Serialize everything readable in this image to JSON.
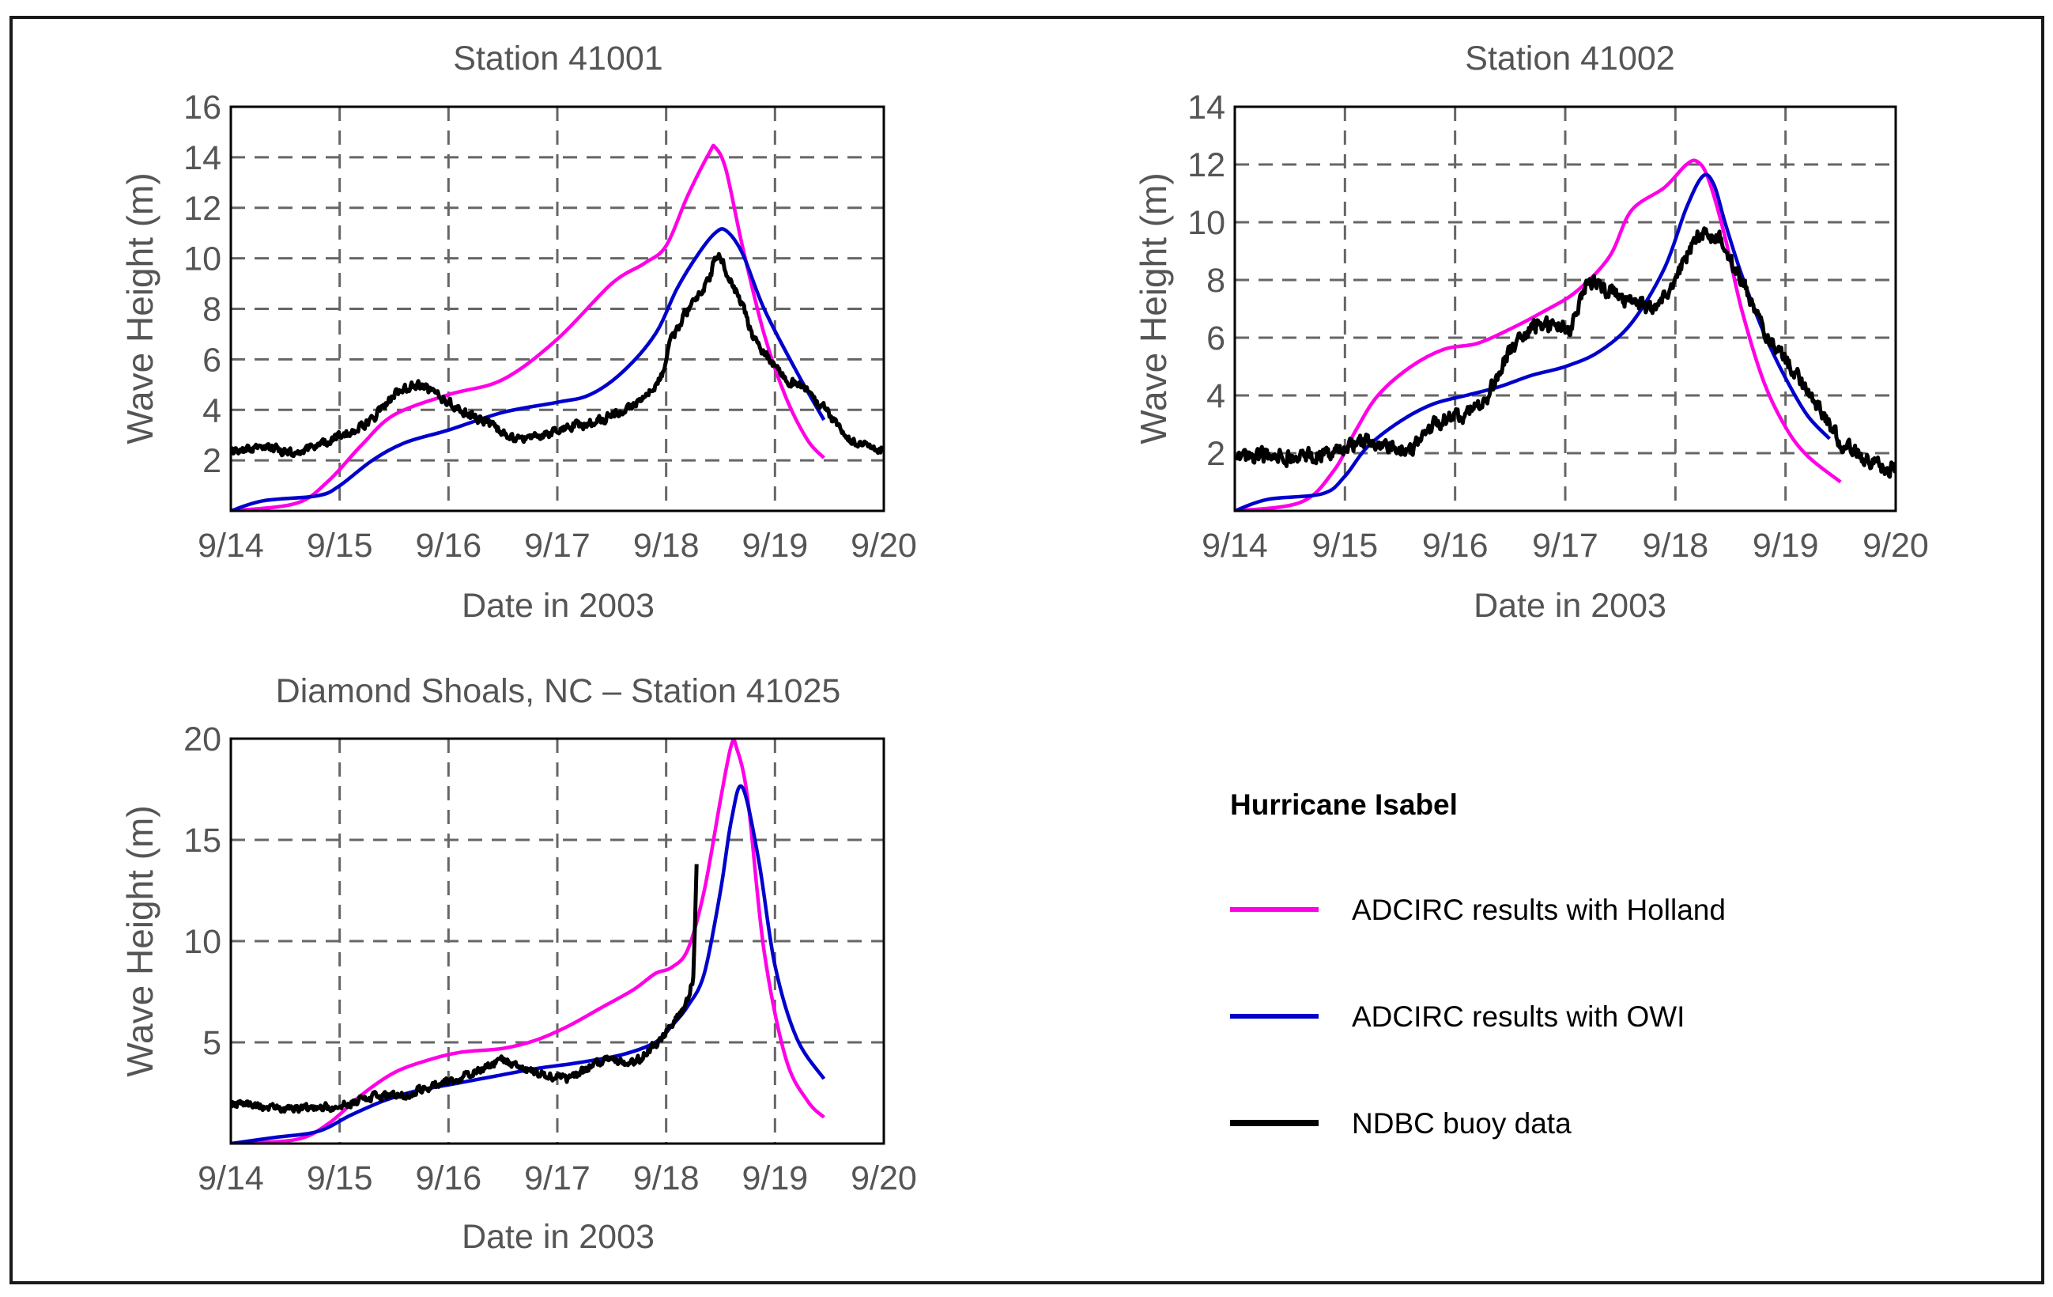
{
  "legend": {
    "title": "Hurricane Isabel",
    "entries": [
      {
        "label": "ADCIRC results with Holland",
        "color": "#ff00e6"
      },
      {
        "label": "ADCIRC results with OWI",
        "color": "#0000cc"
      },
      {
        "label": "NDBC buoy data",
        "color": "#000000"
      }
    ]
  },
  "chart_data": [
    {
      "type": "line",
      "title": "Station 41001",
      "xlabel": "Date in 2003",
      "ylabel": "Wave Height (m)",
      "x_ticks": [
        "9/14",
        "9/15",
        "9/16",
        "9/17",
        "9/18",
        "9/19",
        "9/20"
      ],
      "xlim": [
        0,
        6
      ],
      "ylim": [
        0,
        16
      ],
      "y_ticks": [
        2,
        4,
        6,
        8,
        10,
        12,
        14,
        16
      ],
      "grid": true,
      "series": [
        {
          "name": "ADCIRC results with Holland",
          "color": "#ff00e6",
          "noise": 0,
          "x": [
            0,
            0.6,
            0.9,
            1.2,
            1.5,
            2.0,
            2.5,
            3.0,
            3.5,
            3.8,
            4.0,
            4.2,
            4.4,
            4.45,
            4.55,
            4.7,
            4.9,
            5.1,
            5.3,
            5.45
          ],
          "y": [
            0,
            0.3,
            1.2,
            2.6,
            3.8,
            4.6,
            5.2,
            6.8,
            9.0,
            9.8,
            10.5,
            12.5,
            14.2,
            14.4,
            13.5,
            10.5,
            7.0,
            4.5,
            2.8,
            2.1
          ]
        },
        {
          "name": "ADCIRC results with OWI",
          "color": "#0000cc",
          "noise": 0,
          "x": [
            0,
            0.3,
            0.8,
            1.0,
            1.3,
            1.6,
            2.0,
            2.5,
            3.0,
            3.3,
            3.6,
            3.9,
            4.1,
            4.3,
            4.45,
            4.55,
            4.7,
            4.9,
            5.2,
            5.45
          ],
          "y": [
            0,
            0.4,
            0.6,
            1.0,
            2.0,
            2.7,
            3.2,
            3.9,
            4.3,
            4.6,
            5.5,
            7.0,
            8.8,
            10.2,
            11.0,
            11.1,
            10.2,
            8.0,
            5.5,
            3.6
          ]
        },
        {
          "name": "NDBC buoy data",
          "color": "#000000",
          "noise": 0.15,
          "x": [
            0,
            0.3,
            0.5,
            0.8,
            1.0,
            1.3,
            1.5,
            1.7,
            1.9,
            2.1,
            2.4,
            2.6,
            2.9,
            3.1,
            3.4,
            3.7,
            3.95,
            4.05,
            4.2,
            4.3,
            4.4,
            4.45,
            4.5,
            4.6,
            4.7,
            4.8,
            4.95,
            5.1,
            5.3,
            5.5,
            5.7,
            6.0
          ],
          "y": [
            2.3,
            2.6,
            2.3,
            2.6,
            2.9,
            3.6,
            4.6,
            5.0,
            4.6,
            4.0,
            3.4,
            2.8,
            3.0,
            3.3,
            3.6,
            4.2,
            5.2,
            6.8,
            8.0,
            8.6,
            9.2,
            10.0,
            10.1,
            9.0,
            8.2,
            6.8,
            6.0,
            5.2,
            4.8,
            3.8,
            2.8,
            2.4
          ]
        }
      ]
    },
    {
      "type": "line",
      "title": "Station 41002",
      "xlabel": "Date in 2003",
      "ylabel": "Wave Height (m)",
      "x_ticks": [
        "9/14",
        "9/15",
        "9/16",
        "9/17",
        "9/18",
        "9/19",
        "9/20"
      ],
      "xlim": [
        0,
        6
      ],
      "ylim": [
        0,
        14
      ],
      "y_ticks": [
        2,
        4,
        6,
        8,
        10,
        12,
        14
      ],
      "grid": true,
      "series": [
        {
          "name": "ADCIRC results with Holland",
          "color": "#ff00e6",
          "noise": 0,
          "x": [
            0,
            0.6,
            0.9,
            1.1,
            1.3,
            1.6,
            1.9,
            2.2,
            2.5,
            2.8,
            3.1,
            3.4,
            3.6,
            3.9,
            4.1,
            4.2,
            4.3,
            4.45,
            4.6,
            4.8,
            5.0,
            5.2,
            5.5
          ],
          "y": [
            0,
            0.3,
            1.4,
            2.8,
            4.0,
            5.0,
            5.6,
            5.8,
            6.3,
            6.9,
            7.6,
            8.8,
            10.4,
            11.2,
            12.0,
            12.1,
            11.5,
            9.5,
            7.0,
            4.5,
            2.9,
            1.9,
            1.0
          ]
        },
        {
          "name": "ADCIRC results with OWI",
          "color": "#0000cc",
          "noise": 0,
          "x": [
            0,
            0.3,
            0.8,
            1.0,
            1.2,
            1.5,
            1.8,
            2.1,
            2.4,
            2.7,
            3.0,
            3.3,
            3.6,
            3.9,
            4.1,
            4.25,
            4.35,
            4.45,
            4.6,
            4.8,
            5.0,
            5.2,
            5.4
          ],
          "y": [
            0,
            0.4,
            0.6,
            1.2,
            2.2,
            3.1,
            3.7,
            4.0,
            4.3,
            4.7,
            5.0,
            5.5,
            6.5,
            8.4,
            10.5,
            11.6,
            11.3,
            10.0,
            8.2,
            6.2,
            4.6,
            3.3,
            2.5
          ]
        },
        {
          "name": "NDBC buoy data",
          "color": "#000000",
          "noise": 0.25,
          "x": [
            0,
            0.3,
            0.5,
            0.8,
            1.0,
            1.2,
            1.4,
            1.6,
            1.8,
            1.95,
            2.1,
            2.3,
            2.5,
            2.7,
            2.95,
            3.05,
            3.2,
            3.4,
            3.6,
            3.8,
            3.95,
            4.1,
            4.2,
            4.3,
            4.4,
            4.55,
            4.7,
            4.85,
            5.1,
            5.3,
            5.5,
            5.8,
            6.0
          ],
          "y": [
            1.8,
            1.9,
            1.8,
            2.0,
            2.2,
            2.4,
            2.3,
            2.1,
            3.0,
            3.2,
            3.3,
            4.0,
            5.6,
            6.3,
            6.5,
            6.2,
            8.0,
            7.6,
            7.2,
            7.0,
            7.6,
            8.8,
            9.6,
            9.5,
            9.4,
            8.4,
            7.2,
            6.0,
            4.7,
            3.6,
            2.4,
            1.6,
            1.4
          ]
        }
      ]
    },
    {
      "type": "line",
      "title": "Diamond Shoals, NC – Station 41025",
      "xlabel": "Date in 2003",
      "ylabel": "Wave Height (m)",
      "x_ticks": [
        "9/14",
        "9/15",
        "9/16",
        "9/17",
        "9/18",
        "9/19",
        "9/20"
      ],
      "xlim": [
        0,
        6
      ],
      "ylim": [
        0,
        20
      ],
      "y_ticks": [
        5,
        10,
        15,
        20
      ],
      "grid": true,
      "series": [
        {
          "name": "ADCIRC results with Holland",
          "color": "#ff00e6",
          "noise": 0,
          "x": [
            0,
            0.6,
            0.9,
            1.2,
            1.5,
            1.8,
            2.1,
            2.5,
            2.8,
            3.1,
            3.4,
            3.7,
            3.9,
            4.05,
            4.2,
            4.35,
            4.5,
            4.6,
            4.65,
            4.75,
            4.9,
            5.1,
            5.3,
            5.45
          ],
          "y": [
            0,
            0.2,
            1.0,
            2.4,
            3.5,
            4.1,
            4.5,
            4.7,
            5.1,
            5.8,
            6.7,
            7.6,
            8.4,
            8.7,
            9.6,
            12.5,
            17.0,
            19.7,
            19.5,
            17.0,
            9.5,
            4.2,
            2.1,
            1.3
          ]
        },
        {
          "name": "ADCIRC results with OWI",
          "color": "#0000cc",
          "noise": 0,
          "x": [
            0,
            0.4,
            0.8,
            1.1,
            1.4,
            1.7,
            2.0,
            2.4,
            2.8,
            3.2,
            3.6,
            3.9,
            4.05,
            4.2,
            4.35,
            4.5,
            4.6,
            4.7,
            4.85,
            5.0,
            5.2,
            5.45
          ],
          "y": [
            0,
            0.3,
            0.6,
            1.4,
            2.1,
            2.6,
            2.9,
            3.3,
            3.7,
            4.0,
            4.4,
            5.0,
            5.8,
            6.8,
            8.4,
            12.5,
            16.0,
            17.6,
            14.0,
            8.8,
            5.2,
            3.2
          ]
        },
        {
          "name": "NDBC buoy data",
          "color": "#000000",
          "noise": 0.14,
          "x": [
            0,
            0.3,
            0.6,
            0.9,
            1.1,
            1.3,
            1.6,
            1.9,
            2.1,
            2.3,
            2.5,
            2.7,
            2.9,
            3.1,
            3.3,
            3.5,
            3.7,
            3.9,
            4.05,
            4.15,
            4.2,
            4.25,
            4.28
          ],
          "y": [
            2.0,
            1.8,
            1.7,
            1.8,
            2.0,
            2.3,
            2.4,
            2.9,
            3.2,
            3.7,
            4.2,
            3.6,
            3.4,
            3.1,
            3.8,
            4.2,
            3.9,
            4.9,
            5.7,
            6.6,
            7.2,
            8.2,
            13.8
          ]
        }
      ]
    }
  ]
}
